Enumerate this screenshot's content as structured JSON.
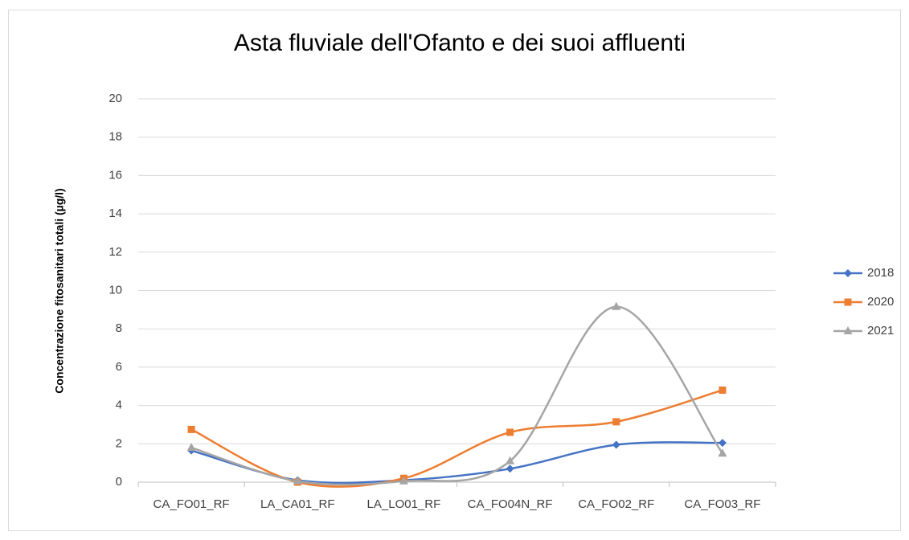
{
  "chart_data": {
    "type": "line",
    "smooth": true,
    "title": "Asta fluviale dell'Ofanto e dei suoi affluenti",
    "y_label": "Concentrazione fitosanitari totali (µg/l)",
    "categories": [
      "CA_FO01_RF",
      "LA_CA01_RF",
      "LA_LO01_RF",
      "CA_FO04N_RF",
      "CA_FO02_RF",
      "CA_FO03_RF"
    ],
    "series": [
      {
        "name": "2018",
        "color": "#4472c4",
        "marker": "diamond",
        "values": [
          1.65,
          0.1,
          0.1,
          0.7,
          1.95,
          2.05
        ]
      },
      {
        "name": "2020",
        "color": "#ed7d31",
        "marker": "square",
        "values": [
          2.75,
          0,
          0.2,
          2.6,
          3.15,
          4.8
        ]
      },
      {
        "name": "2021",
        "color": "#a5a5a5",
        "marker": "triangle",
        "values": [
          1.8,
          0.05,
          0.05,
          1.1,
          9.15,
          1.5
        ]
      }
    ],
    "ylim": [
      0,
      20
    ],
    "yticks": [
      0,
      2,
      4,
      6,
      8,
      10,
      12,
      14,
      16,
      18,
      20
    ],
    "grid": true,
    "legend": "right"
  }
}
